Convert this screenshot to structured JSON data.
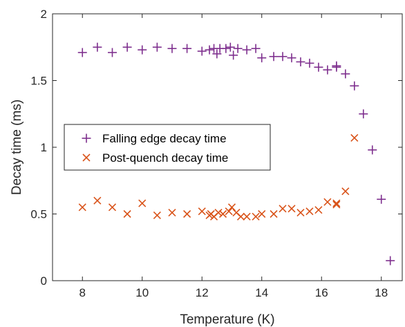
{
  "chart_data": {
    "type": "scatter",
    "title": "",
    "xlabel": "Temperature (K)",
    "ylabel": "Decay time (ms)",
    "xlim": [
      7,
      18.7
    ],
    "ylim": [
      0,
      2
    ],
    "xticks": [
      8,
      10,
      12,
      14,
      16,
      18
    ],
    "yticks": [
      0,
      0.5,
      1,
      1.5,
      2
    ],
    "xtick_labels": [
      "8",
      "10",
      "12",
      "14",
      "16",
      "18"
    ],
    "ytick_labels": [
      "0",
      "0.5",
      "1",
      "1.5",
      "2"
    ],
    "grid": false,
    "legend_position": "center-left",
    "series": [
      {
        "name": "Falling edge decay time",
        "marker": "plus",
        "color": "#7E2F8E",
        "points": [
          [
            8.0,
            1.71
          ],
          [
            8.5,
            1.75
          ],
          [
            9.0,
            1.71
          ],
          [
            9.5,
            1.75
          ],
          [
            10.0,
            1.73
          ],
          [
            10.5,
            1.75
          ],
          [
            11.0,
            1.74
          ],
          [
            11.5,
            1.74
          ],
          [
            12.0,
            1.72
          ],
          [
            12.25,
            1.73
          ],
          [
            12.4,
            1.74
          ],
          [
            12.5,
            1.7
          ],
          [
            12.6,
            1.74
          ],
          [
            12.8,
            1.74
          ],
          [
            12.95,
            1.75
          ],
          [
            13.05,
            1.69
          ],
          [
            13.2,
            1.74
          ],
          [
            13.5,
            1.73
          ],
          [
            13.8,
            1.74
          ],
          [
            14.0,
            1.67
          ],
          [
            14.4,
            1.68
          ],
          [
            14.7,
            1.68
          ],
          [
            15.0,
            1.67
          ],
          [
            15.3,
            1.64
          ],
          [
            15.6,
            1.63
          ],
          [
            15.9,
            1.6
          ],
          [
            16.2,
            1.58
          ],
          [
            16.5,
            1.6
          ],
          [
            16.5,
            1.61
          ],
          [
            16.8,
            1.55
          ],
          [
            17.1,
            1.46
          ],
          [
            17.4,
            1.25
          ],
          [
            17.7,
            0.98
          ],
          [
            18.0,
            0.61
          ],
          [
            18.3,
            0.15
          ]
        ]
      },
      {
        "name": "Post-quench decay time",
        "marker": "x",
        "color": "#D95319",
        "points": [
          [
            8.0,
            0.55
          ],
          [
            8.5,
            0.6
          ],
          [
            9.0,
            0.55
          ],
          [
            9.5,
            0.5
          ],
          [
            10.0,
            0.58
          ],
          [
            10.5,
            0.49
          ],
          [
            11.0,
            0.51
          ],
          [
            11.5,
            0.5
          ],
          [
            12.0,
            0.52
          ],
          [
            12.25,
            0.49
          ],
          [
            12.3,
            0.5
          ],
          [
            12.4,
            0.48
          ],
          [
            12.55,
            0.51
          ],
          [
            12.7,
            0.5
          ],
          [
            12.9,
            0.52
          ],
          [
            13.0,
            0.55
          ],
          [
            13.15,
            0.51
          ],
          [
            13.3,
            0.48
          ],
          [
            13.5,
            0.48
          ],
          [
            13.8,
            0.48
          ],
          [
            14.0,
            0.5
          ],
          [
            14.4,
            0.5
          ],
          [
            14.7,
            0.54
          ],
          [
            15.0,
            0.54
          ],
          [
            15.3,
            0.51
          ],
          [
            15.6,
            0.52
          ],
          [
            15.9,
            0.53
          ],
          [
            16.2,
            0.59
          ],
          [
            16.5,
            0.57
          ],
          [
            16.5,
            0.58
          ],
          [
            16.8,
            0.67
          ],
          [
            17.1,
            1.07
          ]
        ]
      }
    ]
  }
}
